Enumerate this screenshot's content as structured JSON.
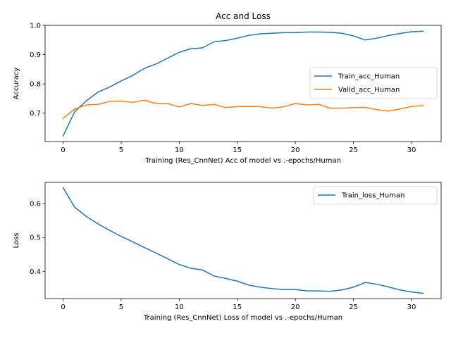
{
  "chart_data": [
    {
      "type": "line",
      "title": "Acc and Loss",
      "xlabel": "Training (Res_CnnNet) Acc of model vs .-epochs/Human",
      "ylabel": "Accuracy",
      "xlim": [
        -1.55,
        32.55
      ],
      "ylim": [
        0.603,
        1.0
      ],
      "xticks": [
        0,
        5,
        10,
        15,
        20,
        25,
        30
      ],
      "yticks": [
        0.7,
        0.8,
        0.9,
        1.0
      ],
      "xtick_labels": [
        "0",
        "5",
        "10",
        "15",
        "20",
        "25",
        "30"
      ],
      "ytick_labels": [
        "0.7",
        "0.8",
        "0.9",
        "1.0"
      ],
      "legend_placement": "center-right",
      "grid": false,
      "x": [
        0,
        1,
        2,
        3,
        4,
        5,
        6,
        7,
        8,
        9,
        10,
        11,
        12,
        13,
        14,
        15,
        16,
        17,
        18,
        19,
        20,
        21,
        22,
        23,
        24,
        25,
        26,
        27,
        28,
        29,
        30,
        31
      ],
      "series": [
        {
          "name": "Train_acc_Human",
          "color": "#1f77b4",
          "values": [
            0.622,
            0.705,
            0.742,
            0.772,
            0.789,
            0.81,
            0.829,
            0.853,
            0.868,
            0.888,
            0.908,
            0.92,
            0.923,
            0.944,
            0.948,
            0.956,
            0.966,
            0.971,
            0.973,
            0.975,
            0.975,
            0.977,
            0.977,
            0.976,
            0.973,
            0.964,
            0.95,
            0.956,
            0.965,
            0.972,
            0.978,
            0.98
          ]
        },
        {
          "name": "Valid_acc_Human",
          "color": "#ff7f0e",
          "values": [
            0.682,
            0.714,
            0.728,
            0.73,
            0.74,
            0.741,
            0.737,
            0.744,
            0.733,
            0.733,
            0.721,
            0.733,
            0.726,
            0.73,
            0.719,
            0.722,
            0.723,
            0.722,
            0.717,
            0.722,
            0.733,
            0.728,
            0.73,
            0.717,
            0.717,
            0.719,
            0.72,
            0.712,
            0.707,
            0.714,
            0.723,
            0.726
          ]
        }
      ]
    },
    {
      "type": "line",
      "title": "",
      "xlabel": "Training (Res_CnnNet) Loss of model vs .-epochs/Human",
      "ylabel": "Loss",
      "xlim": [
        -1.55,
        32.55
      ],
      "ylim": [
        0.3195,
        0.6625
      ],
      "xticks": [
        0,
        5,
        10,
        15,
        20,
        25,
        30
      ],
      "yticks": [
        0.4,
        0.5,
        0.6
      ],
      "xtick_labels": [
        "0",
        "5",
        "10",
        "15",
        "20",
        "25",
        "30"
      ],
      "ytick_labels": [
        "0.4",
        "0.5",
        "0.6"
      ],
      "legend_placement": "upper-right",
      "grid": false,
      "x": [
        0,
        1,
        2,
        3,
        4,
        5,
        6,
        7,
        8,
        9,
        10,
        11,
        12,
        13,
        14,
        15,
        16,
        17,
        18,
        19,
        20,
        21,
        22,
        23,
        24,
        25,
        26,
        27,
        28,
        29,
        30,
        31
      ],
      "series": [
        {
          "name": "Train_loss_Human",
          "color": "#1f77b4",
          "values": [
            0.647,
            0.589,
            0.562,
            0.54,
            0.521,
            0.503,
            0.487,
            0.47,
            0.454,
            0.437,
            0.42,
            0.409,
            0.404,
            0.386,
            0.379,
            0.371,
            0.359,
            0.353,
            0.349,
            0.346,
            0.346,
            0.342,
            0.342,
            0.341,
            0.345,
            0.353,
            0.367,
            0.362,
            0.354,
            0.345,
            0.339,
            0.335
          ]
        }
      ]
    }
  ]
}
